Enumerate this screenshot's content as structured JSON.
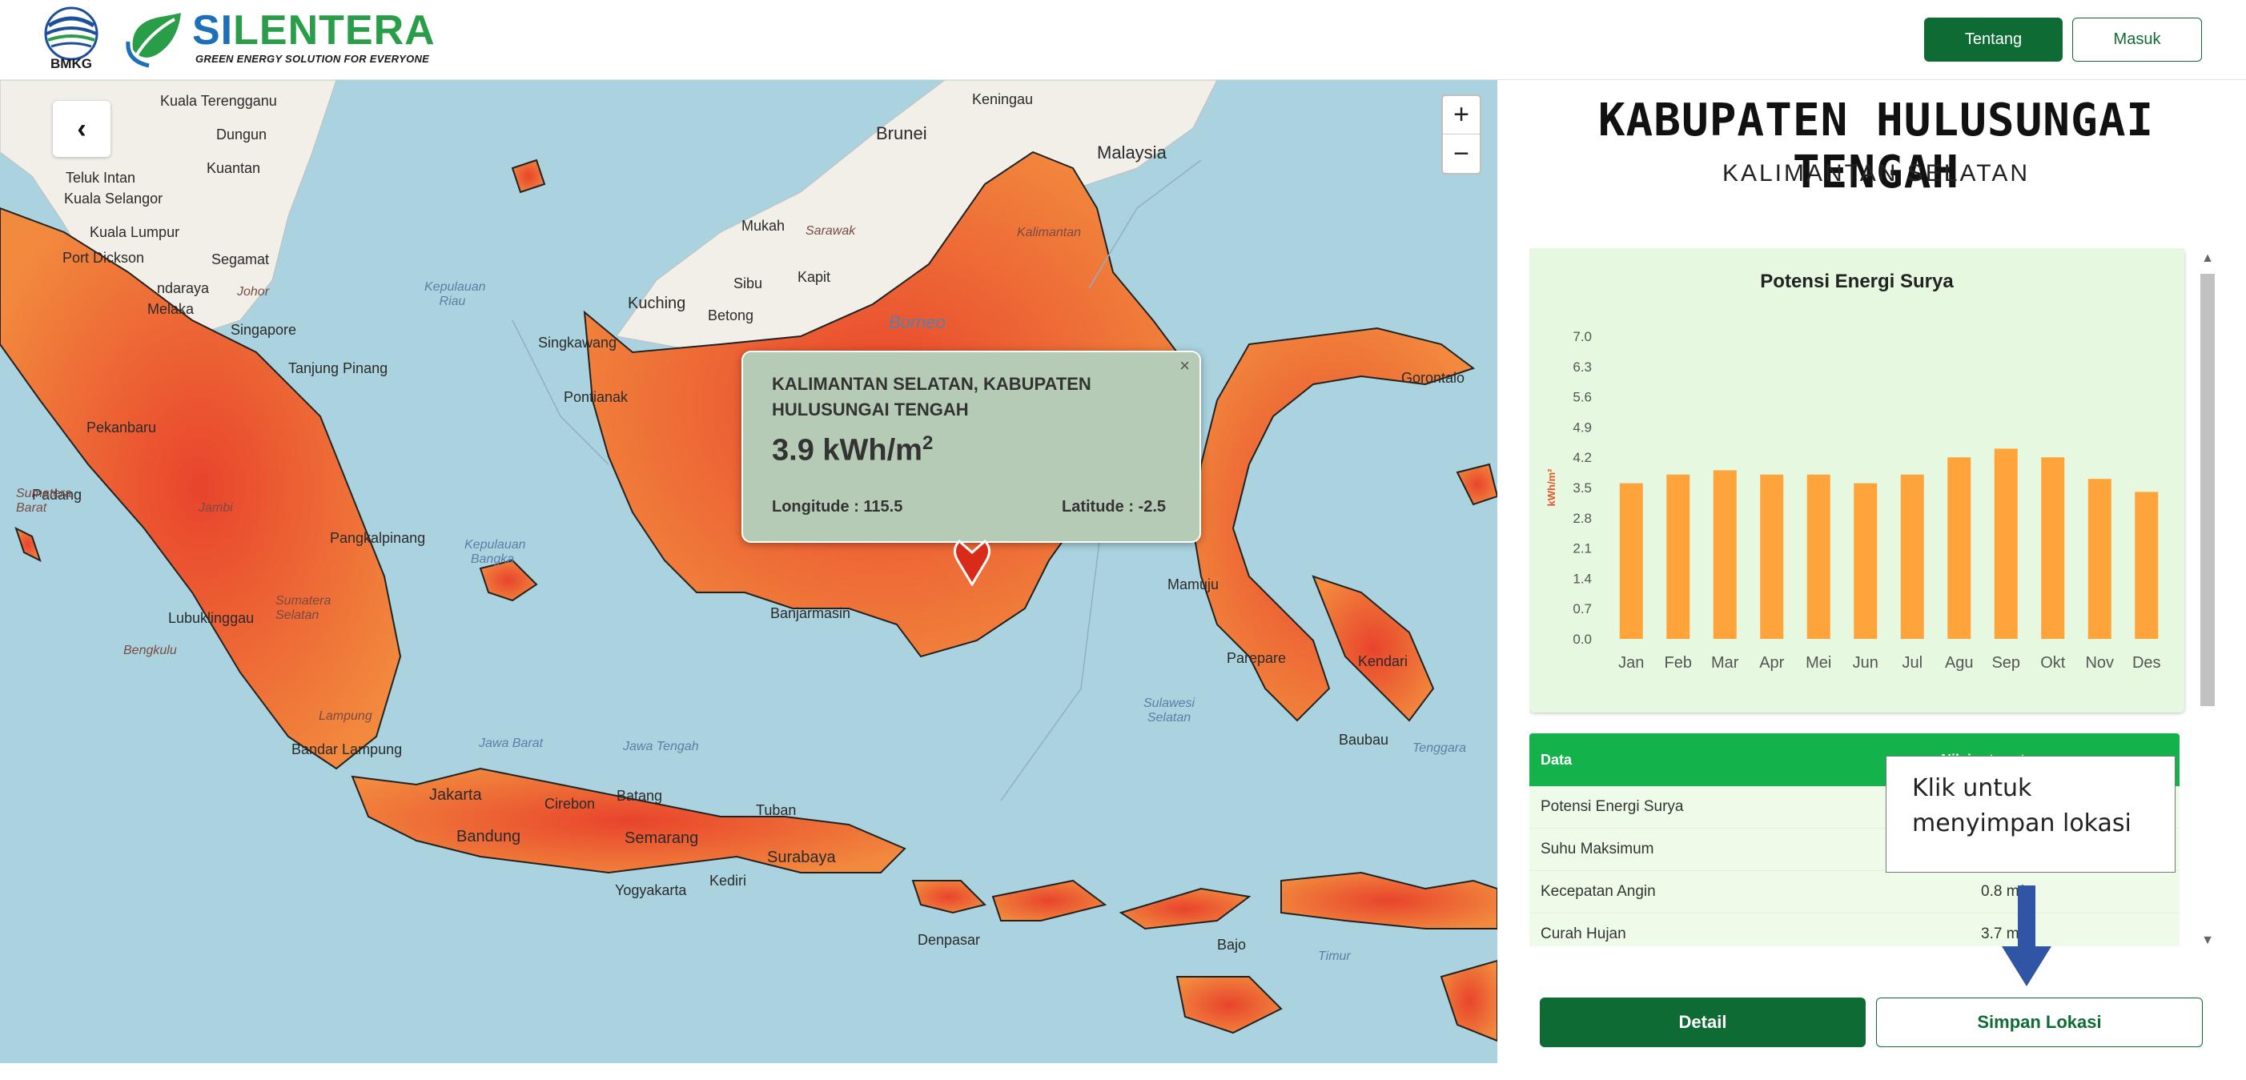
{
  "header": {
    "bmkg_text": "BMKG",
    "brand_si": "SI",
    "brand_rest": "LENTERA",
    "tagline": "GREEN ENERGY SOLUTION FOR EVERYONE",
    "nav_tentang": "Tentang",
    "nav_masuk": "Masuk"
  },
  "map": {
    "zoom_in": "+",
    "zoom_out": "−",
    "back_icon": "‹",
    "labels": {
      "kuala_terengganu": "Kuala Terengganu",
      "dungun": "Dungun",
      "kuantan": "Kuantan",
      "teluk_intan": "Teluk Intan",
      "kuala_selangor": "Kuala Selangor",
      "kuala_lumpur": "Kuala Lumpur",
      "port_dickson": "Port Dickson",
      "segamat": "Segamat",
      "ndaraya": "ndaraya",
      "melaka": "Melaka",
      "johor": "Johor",
      "singapore": "Singapore",
      "tanjung_pinang": "Tanjung Pinang",
      "pekanbaru": "Pekanbaru",
      "padang": "Padang",
      "jambi": "Jambi",
      "pangkalpinang": "Pangkalpinang",
      "sumatera_barat": "Sumatera Barat",
      "sumatera_selatan": "Sumatera Selatan",
      "lubuklinggau": "Lubuklinggau",
      "bengkulu": "Bengkulu",
      "lampung": "Lampung",
      "bandar_lampung": "Bandar Lampung",
      "kepulauan_riau": "Kepulauan Riau",
      "kepulauan_bangka": "Kepulauan Bangka",
      "brunei": "Brunei",
      "keningau": "Keningau",
      "malaysia": "Malaysia",
      "mukah": "Mukah",
      "sarawak": "Sarawak",
      "sibu": "Sibu",
      "kapit": "Kapit",
      "kuching": "Kuching",
      "betong": "Betong",
      "singkawang": "Singkawang",
      "pontianak": "Pontianak",
      "borneo": "Borneo",
      "kalimantan": "Kalimantan",
      "banjarmasin": "Banjarmasin",
      "jakarta": "Jakarta",
      "bandung": "Bandung",
      "cirebon": "Cirebon",
      "batang": "Batang",
      "semarang": "Semarang",
      "yogyakarta": "Yogyakarta",
      "tuban": "Tuban",
      "surabaya": "Surabaya",
      "kediri": "Kediri",
      "jawa_barat": "Jawa Barat",
      "jawa_tengah": "Jawa Tengah",
      "denpasar": "Denpasar",
      "bajo": "Bajo",
      "timur": "Timur",
      "sulawesi_selatan": "Sulawesi Selatan",
      "parepare": "Parepare",
      "kendari": "Kendari",
      "baubau": "Baubau",
      "tenggara": "Tenggara",
      "gorontalo": "Gorontalo",
      "mamuju": "Mamuju"
    }
  },
  "popup": {
    "close": "×",
    "title": "KALIMANTAN SELATAN, KABUPATEN HULUSUNGAI TENGAH",
    "value": "3.9 kWh/m",
    "value_sup": "2",
    "longitude": "Longitude : 115.5",
    "latitude": "Latitude : -2.5"
  },
  "panel": {
    "title": "KABUPATEN HULUSUNGAI TENGAH",
    "subtitle": "KALIMANTAN SELATAN",
    "table": {
      "header": [
        "Data",
        "Nilai rata-rata"
      ],
      "rows": [
        [
          "Potensi Energi Surya",
          ""
        ],
        [
          "Suhu Maksimum",
          ""
        ],
        [
          "Kecepatan Angin",
          "0.8 m/s"
        ],
        [
          "Curah Hujan",
          "3.7 mm"
        ]
      ]
    },
    "tooltip": "Klik untuk menyimpan lokasi",
    "btn_detail": "Detail",
    "btn_simpan": "Simpan Lokasi"
  },
  "chart_data": {
    "type": "bar",
    "title": "Potensi Energi Surya",
    "ylabel": "kWh/m²",
    "xlabel": "",
    "categories": [
      "Jan",
      "Feb",
      "Mar",
      "Apr",
      "Mei",
      "Jun",
      "Jul",
      "Agu",
      "Sep",
      "Okt",
      "Nov",
      "Des"
    ],
    "values": [
      3.6,
      3.8,
      3.9,
      3.8,
      3.8,
      3.6,
      3.8,
      4.2,
      4.4,
      4.2,
      3.7,
      3.4
    ],
    "yticks": [
      "0.0",
      "0.7",
      "1.4",
      "2.1",
      "2.8",
      "3.5",
      "4.2",
      "4.9",
      "5.6",
      "6.3",
      "7.0"
    ],
    "ylim": [
      0,
      7.0
    ],
    "bar_color": "#ffa43a",
    "grid": false
  },
  "colors": {
    "primary_green": "#0f6b34",
    "table_header_green": "#13b24a",
    "sea": "#aad3df",
    "heat_orange": "#f07a3a"
  }
}
